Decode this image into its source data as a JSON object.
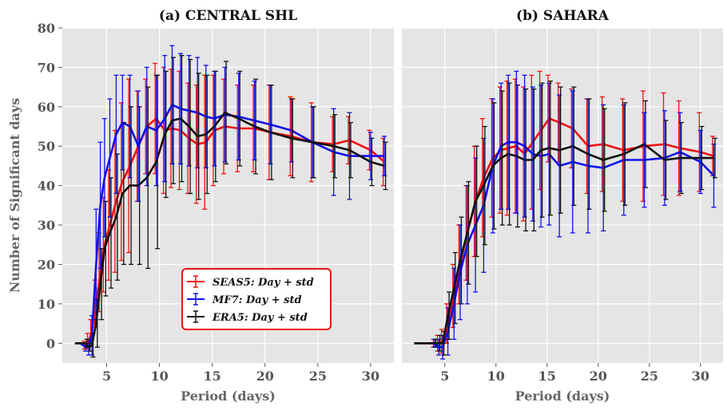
{
  "chart_data": [
    {
      "type": "line",
      "title": "(a) CENTRAL SHL",
      "xlabel": "Period (days)",
      "ylabel": "Number of Significant days",
      "xlim": [
        0.8,
        32.2
      ],
      "ylim": [
        -5,
        80
      ],
      "xticks": [
        5,
        10,
        15,
        20,
        25,
        30
      ],
      "yticks": [
        0,
        10,
        20,
        30,
        40,
        50,
        60,
        70,
        80
      ],
      "grid": true,
      "legend": "lower center",
      "series": [
        {
          "name": "SEAS5: Day + std",
          "color": "#ee1111",
          "x": [
            2.0,
            2.5,
            3.0,
            3.3,
            3.6,
            4.0,
            4.4,
            4.8,
            5.3,
            5.9,
            6.5,
            7.2,
            8.0,
            8.8,
            9.7,
            10.5,
            11.2,
            12.0,
            12.8,
            13.6,
            14.4,
            15.2,
            16.2,
            17.5,
            19.0,
            20.5,
            22.5,
            24.5,
            26.5,
            28.0,
            30.0,
            31.3
          ],
          "y": [
            0,
            0,
            -0.5,
            0.5,
            3,
            10,
            18,
            25,
            30,
            36,
            41,
            45,
            50,
            55,
            57,
            54,
            54.5,
            54,
            52,
            50.5,
            51,
            54,
            55,
            54.5,
            54.5,
            53.5,
            52.5,
            51,
            50.5,
            51.5,
            49,
            46
          ],
          "err": [
            0,
            0,
            1,
            2,
            3,
            6,
            10,
            12,
            14,
            18,
            20,
            22,
            14,
            12,
            14,
            16,
            15,
            15,
            14,
            15,
            17,
            14,
            12,
            11,
            11,
            12,
            10,
            10,
            7,
            6,
            5,
            6
          ]
        },
        {
          "name": "MF7: Day + std",
          "color": "#1111ee",
          "x": [
            2.0,
            2.5,
            3.0,
            3.3,
            3.6,
            4.0,
            4.4,
            4.8,
            5.3,
            5.9,
            6.5,
            7.2,
            8.0,
            8.8,
            9.7,
            10.5,
            11.2,
            12.0,
            12.8,
            13.6,
            14.4,
            15.2,
            16.2,
            17.5,
            19.0,
            20.5,
            22.5,
            24.5,
            26.5,
            28.0,
            30.0,
            31.3
          ],
          "y": [
            0,
            0,
            -1,
            -1,
            2,
            20,
            35,
            42,
            47,
            53,
            56,
            55,
            50,
            55,
            54,
            57,
            60.5,
            59.5,
            59,
            58.5,
            57.5,
            57,
            58,
            57.5,
            56.5,
            55.5,
            54,
            51,
            48.5,
            47.5,
            47.5,
            47.5
          ],
          "err": [
            0,
            0,
            1,
            2,
            5,
            14,
            16,
            15,
            15,
            15,
            12,
            13,
            14,
            15,
            14,
            16,
            15,
            14,
            14,
            14,
            13,
            12,
            12,
            11,
            10,
            10,
            8,
            9,
            11,
            11,
            6,
            5
          ]
        },
        {
          "name": "ERA5: Day + std",
          "color": "#111111",
          "x": [
            2.0,
            2.5,
            3.0,
            3.3,
            3.6,
            4.0,
            4.4,
            4.8,
            5.3,
            5.9,
            6.5,
            7.2,
            8.0,
            8.8,
            9.7,
            10.5,
            11.2,
            12.0,
            12.8,
            13.6,
            14.4,
            15.2,
            16.2,
            17.5,
            19.0,
            20.5,
            22.5,
            24.5,
            26.5,
            28.0,
            30.0,
            31.3
          ],
          "y": [
            0,
            0,
            0,
            -1,
            -0.5,
            5,
            15,
            24,
            28,
            32,
            38,
            40,
            40,
            42,
            46,
            53,
            56.5,
            57,
            55,
            52.5,
            53,
            55,
            58.5,
            57,
            55,
            53.5,
            52,
            51,
            50,
            49,
            46,
            45
          ],
          "err": [
            0,
            0,
            1,
            1,
            3,
            6,
            9,
            12,
            14,
            16,
            18,
            20,
            20,
            23,
            22,
            16,
            16,
            16,
            17,
            16,
            15,
            14,
            13,
            12,
            12,
            12,
            10,
            9,
            8,
            7,
            6,
            6
          ]
        }
      ]
    },
    {
      "type": "line",
      "title": "(b) SAHARA",
      "xlabel": "Period (days)",
      "xlim": [
        0.8,
        32.2
      ],
      "ylim": [
        -5,
        80
      ],
      "xticks": [
        5,
        10,
        15,
        20,
        25,
        30
      ],
      "grid": true,
      "series": [
        {
          "name": "SEAS5: Day + std",
          "color": "#ee1111",
          "x": [
            2.0,
            2.5,
            3.0,
            3.5,
            4.0,
            4.4,
            4.8,
            5.3,
            5.9,
            6.5,
            7.2,
            8.0,
            8.8,
            9.7,
            10.5,
            11.2,
            12.0,
            12.8,
            13.6,
            14.4,
            15.2,
            16.2,
            17.5,
            19.0,
            20.5,
            22.5,
            24.5,
            26.5,
            28.0,
            30.0,
            31.3
          ],
          "y": [
            0,
            0,
            0,
            0,
            0,
            0,
            0.5,
            5,
            12,
            20,
            28,
            36,
            42,
            47,
            49,
            49.5,
            50,
            48,
            51,
            54,
            57,
            56,
            54.5,
            50,
            50.5,
            49,
            50,
            50.5,
            49.5,
            48.5,
            47.5
          ],
          "err": [
            0,
            0,
            0,
            0,
            1,
            2,
            3,
            5,
            8,
            10,
            12,
            14,
            15,
            15,
            16,
            17,
            17,
            17,
            17,
            15,
            11,
            10,
            10,
            12,
            12,
            13,
            14,
            13,
            12,
            10,
            5
          ]
        },
        {
          "name": "MF7: Day + std",
          "color": "#1111ee",
          "x": [
            2.0,
            2.5,
            3.0,
            3.5,
            4.0,
            4.4,
            4.8,
            5.3,
            5.9,
            6.5,
            7.2,
            8.0,
            8.8,
            9.7,
            10.5,
            11.2,
            12.0,
            12.8,
            13.6,
            14.4,
            15.2,
            16.2,
            17.5,
            19.0,
            20.5,
            22.5,
            24.5,
            26.5,
            28.0,
            30.0,
            31.3
          ],
          "y": [
            0,
            0,
            0,
            0,
            0,
            -1,
            -1,
            3,
            10,
            18,
            25,
            30,
            35,
            45,
            50,
            51,
            51,
            50,
            48,
            47.5,
            48,
            45,
            46,
            45,
            44.5,
            46.5,
            46.5,
            47,
            48.5,
            46,
            42.5
          ],
          "err": [
            0,
            0,
            0,
            0,
            1,
            2,
            3,
            6,
            9,
            12,
            15,
            17,
            17,
            17,
            16,
            17,
            18,
            18,
            17,
            18,
            18,
            18,
            18,
            17,
            16,
            14,
            12,
            12,
            10,
            8,
            8
          ]
        },
        {
          "name": "ERA5: Day + std",
          "color": "#111111",
          "x": [
            2.0,
            2.5,
            3.0,
            3.5,
            4.0,
            4.4,
            4.8,
            5.3,
            5.9,
            6.5,
            7.2,
            8.0,
            8.8,
            9.7,
            10.5,
            11.2,
            12.0,
            12.8,
            13.6,
            14.4,
            15.2,
            16.2,
            17.5,
            19.0,
            20.5,
            22.5,
            24.5,
            26.5,
            28.0,
            30.0,
            31.3
          ],
          "y": [
            0,
            0,
            0,
            0,
            0,
            0,
            0,
            7,
            14,
            21,
            28,
            36,
            40,
            45,
            47,
            48,
            47.5,
            46.5,
            46.5,
            49,
            49.5,
            49,
            50,
            48,
            46.5,
            48,
            50.5,
            46.5,
            47,
            47,
            47
          ],
          "err": [
            0,
            0,
            0,
            0,
            1,
            2,
            3,
            6,
            9,
            11,
            13,
            14,
            15,
            16,
            17,
            18,
            18,
            18,
            18,
            17,
            17,
            16,
            15,
            14,
            13,
            13,
            11,
            10,
            9,
            8,
            5
          ]
        }
      ]
    }
  ]
}
